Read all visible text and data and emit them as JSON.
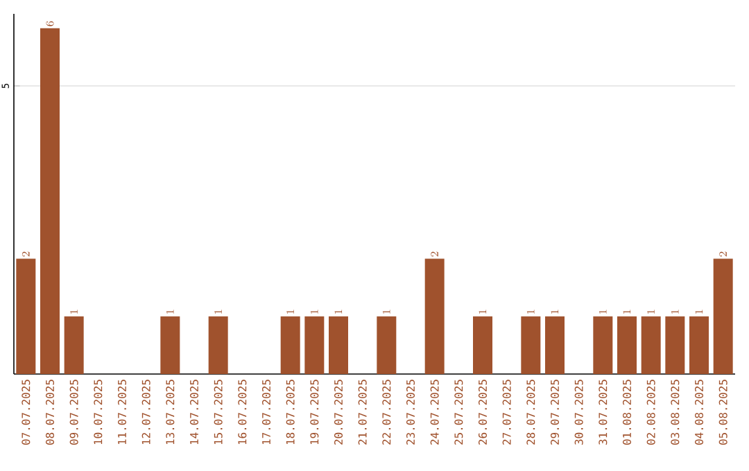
{
  "chart_data": {
    "type": "bar",
    "categories": [
      "07.07.2025",
      "08.07.2025",
      "09.07.2025",
      "10.07.2025",
      "11.07.2025",
      "12.07.2025",
      "13.07.2025",
      "14.07.2025",
      "15.07.2025",
      "16.07.2025",
      "17.07.2025",
      "18.07.2025",
      "19.07.2025",
      "20.07.2025",
      "21.07.2025",
      "22.07.2025",
      "23.07.2025",
      "24.07.2025",
      "25.07.2025",
      "26.07.2025",
      "27.07.2025",
      "28.07.2025",
      "29.07.2025",
      "30.07.2025",
      "31.07.2025",
      "01.08.2025",
      "02.08.2025",
      "03.08.2025",
      "04.08.2025",
      "05.08.2025"
    ],
    "values": [
      2,
      6,
      1,
      null,
      null,
      null,
      1,
      null,
      1,
      null,
      null,
      1,
      1,
      1,
      null,
      1,
      null,
      2,
      null,
      1,
      null,
      1,
      1,
      null,
      1,
      1,
      1,
      1,
      1,
      2
    ],
    "color": "#a0522d",
    "ylim": [
      0,
      6.25
    ],
    "yticks": [
      5
    ],
    "grid": "y",
    "data_labels": true
  }
}
